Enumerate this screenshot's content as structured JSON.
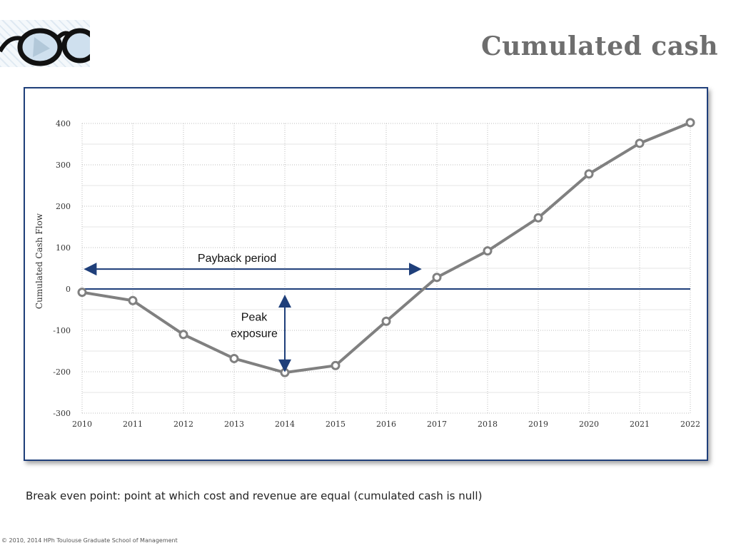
{
  "slide": {
    "title": "Cumulated cash",
    "note": "Break even point: point at which cost and revenue are equal (cumulated cash is null)",
    "copyright": "© 2010, 2014 HPh Toulouse Graduate School of Management"
  },
  "colors": {
    "series": "#808080",
    "accent": "#1f3f7a",
    "title": "#6e6e6e"
  },
  "chart_data": {
    "type": "line",
    "title": "",
    "xlabel": "",
    "ylabel": "Cumulated Cash Flow",
    "x": [
      "2010",
      "2011",
      "2012",
      "2013",
      "2014",
      "2015",
      "2016",
      "2017",
      "2018",
      "2019",
      "2020",
      "2021",
      "2022"
    ],
    "series": [
      {
        "values": [
          -8,
          -28,
          -110,
          -168,
          -202,
          -185,
          -78,
          28,
          92,
          172,
          278,
          352,
          402
        ]
      }
    ],
    "ylim": [
      -300,
      400
    ],
    "yticks": [
      400,
      300,
      200,
      100,
      0,
      -100,
      -200,
      -300
    ],
    "grid": true,
    "annotations": {
      "payback": {
        "label": "Payback period",
        "from_year": "2010",
        "to_year": "2016.65",
        "y": 48
      },
      "peak": {
        "label_line1": "Peak",
        "label_line2": "exposure",
        "x_year": "2014",
        "y_from": -20,
        "y_to": -195
      }
    }
  }
}
